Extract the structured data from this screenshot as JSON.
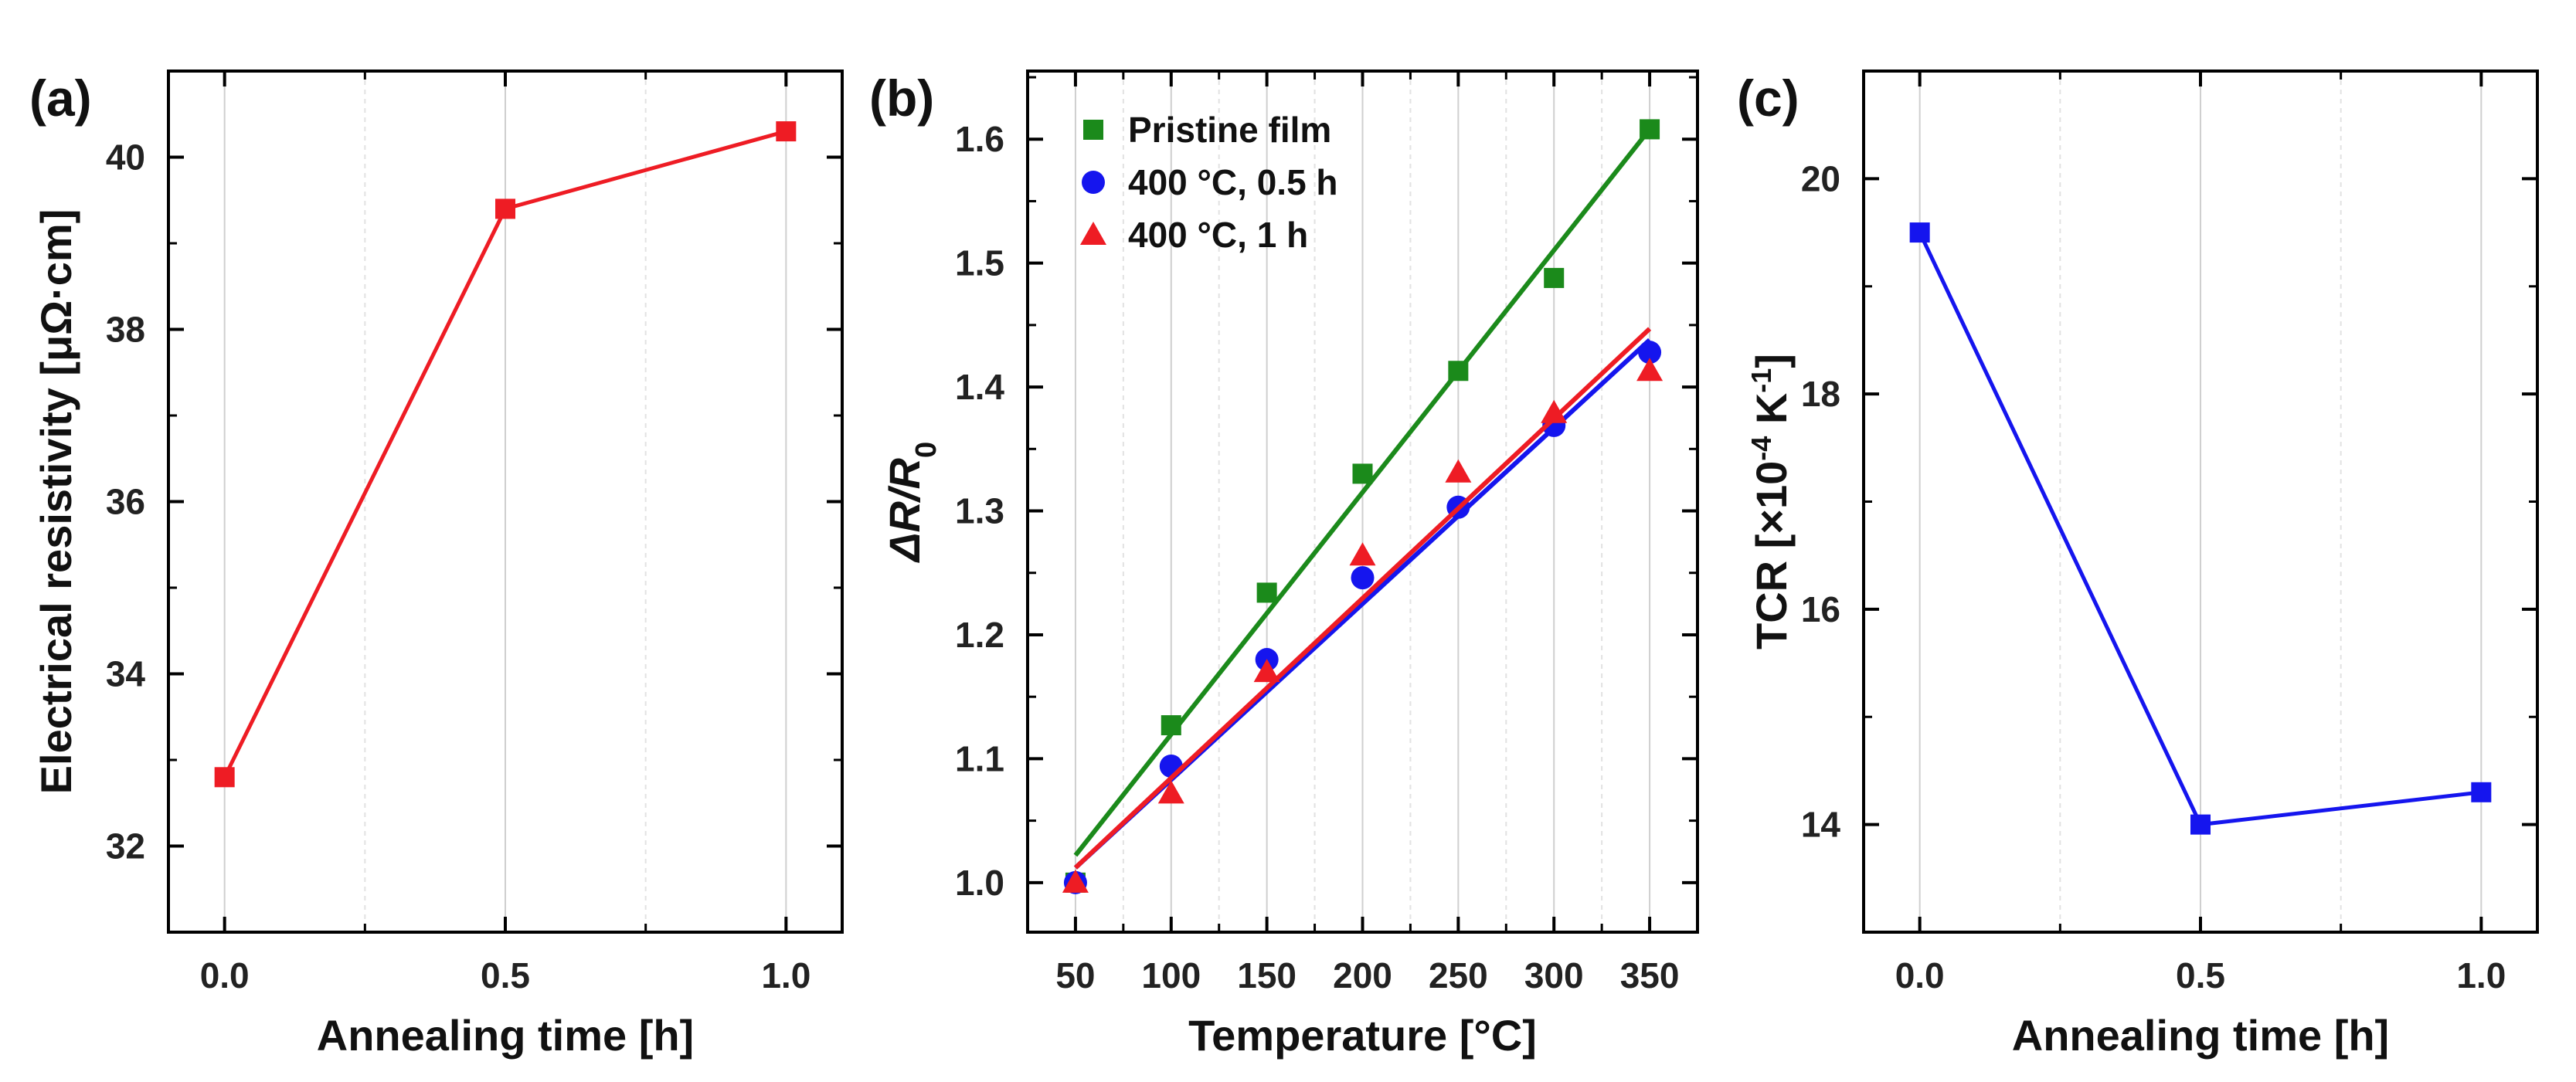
{
  "chart_data": [
    {
      "id": "a",
      "type": "line",
      "panel_label": "(a)",
      "xlabel": "Annealing time [h]",
      "ylabel": "Electrical resistivity [μΩ·cm]",
      "xlim": [
        -0.1,
        1.1
      ],
      "ylim": [
        31,
        41
      ],
      "xticks": [
        0.0,
        0.5,
        1.0
      ],
      "xtick_labels": [
        "0.0",
        "0.5",
        "1.0"
      ],
      "yticks": [
        32,
        34,
        36,
        38,
        40
      ],
      "ytick_labels": [
        "32",
        "34",
        "36",
        "38",
        "40"
      ],
      "grid": "vertical",
      "series": [
        {
          "name": "resistivity",
          "color": "#ee1c24",
          "marker": "square",
          "x": [
            0.0,
            0.5,
            1.0
          ],
          "y": [
            32.8,
            39.4,
            40.3
          ]
        }
      ]
    },
    {
      "id": "b",
      "type": "scatter",
      "panel_label": "(b)",
      "xlabel": "Temperature [°C]",
      "ylabel_main": "ΔR/R",
      "ylabel_sub": "0",
      "xlim": [
        25,
        375
      ],
      "ylim": [
        0.96,
        1.655
      ],
      "xticks": [
        50,
        100,
        150,
        200,
        250,
        300,
        350
      ],
      "xtick_labels": [
        "50",
        "100",
        "150",
        "200",
        "250",
        "300",
        "350"
      ],
      "yticks": [
        1.0,
        1.1,
        1.2,
        1.3,
        1.4,
        1.5,
        1.6
      ],
      "ytick_labels": [
        "1.0",
        "1.1",
        "1.2",
        "1.3",
        "1.4",
        "1.5",
        "1.6"
      ],
      "grid": "vertical",
      "legend_position": "top-left",
      "series": [
        {
          "name": "Pristine film",
          "color": "#1b8a1b",
          "marker": "square",
          "x": [
            50,
            100,
            150,
            200,
            250,
            300,
            350
          ],
          "y": [
            1.0,
            1.127,
            1.234,
            1.33,
            1.413,
            1.488,
            1.608
          ],
          "fit": [
            1.022,
            1.608
          ]
        },
        {
          "name": "400 °C, 0.5 h",
          "color": "#1515ee",
          "marker": "circle",
          "x": [
            50,
            100,
            150,
            200,
            250,
            300,
            350
          ],
          "y": [
            1.0,
            1.094,
            1.18,
            1.246,
            1.303,
            1.369,
            1.428
          ],
          "fit": [
            1.012,
            1.438
          ]
        },
        {
          "name": "400 °C, 1 h",
          "color": "#ee1c24",
          "marker": "triangle",
          "x": [
            50,
            100,
            150,
            200,
            250,
            300,
            350
          ],
          "y": [
            1.0,
            1.072,
            1.17,
            1.264,
            1.331,
            1.379,
            1.413
          ],
          "fit": [
            1.012,
            1.447
          ]
        }
      ]
    },
    {
      "id": "c",
      "type": "line",
      "panel_label": "(c)",
      "xlabel": "Annealing time [h]",
      "ylabel_main": "TCR [×10",
      "ylabel_sup1": "-4",
      "ylabel_mid": " K",
      "ylabel_sup2": "-1",
      "ylabel_end": "]",
      "xlim": [
        -0.1,
        1.1
      ],
      "ylim": [
        13,
        21
      ],
      "xticks": [
        0.0,
        0.5,
        1.0
      ],
      "xtick_labels": [
        "0.0",
        "0.5",
        "1.0"
      ],
      "yticks": [
        14,
        16,
        18,
        20
      ],
      "ytick_labels": [
        "14",
        "16",
        "18",
        "20"
      ],
      "grid": "vertical",
      "series": [
        {
          "name": "TCR",
          "color": "#1515ee",
          "marker": "square",
          "x": [
            0.0,
            0.5,
            1.0
          ],
          "y": [
            19.5,
            14.0,
            14.3
          ]
        }
      ]
    }
  ]
}
